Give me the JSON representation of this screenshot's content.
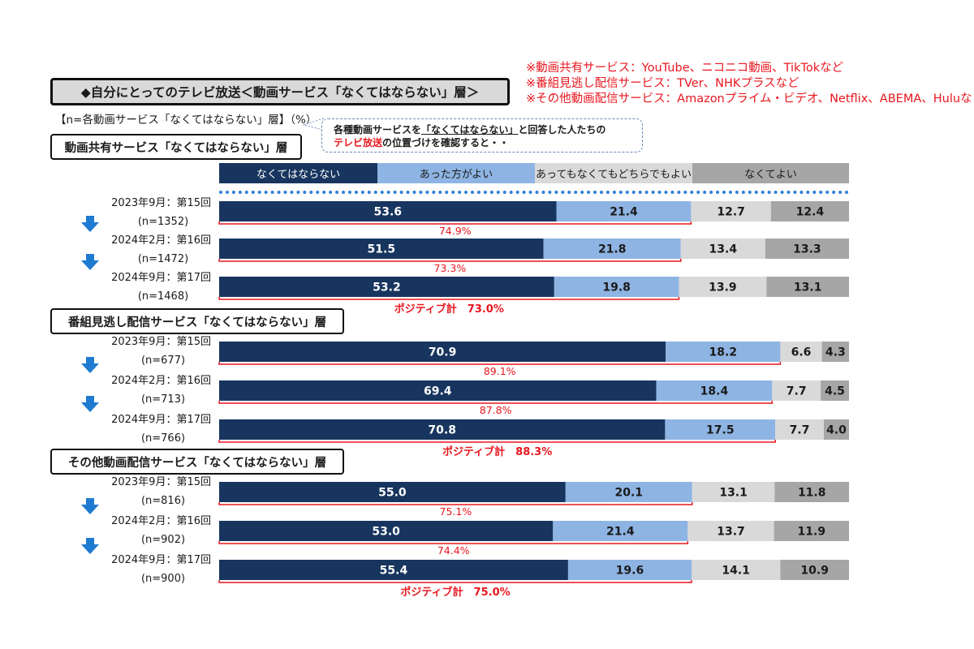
{
  "notes": [
    "※動画共有サービス：YouTube、ニコニコ動画、TikTokなど",
    "※番組見逃し配信サービス：TVer、NHKプラスなど",
    "※その他動画配信サービス：Amazonプライム・ビデオ、Netflix、ABEMA、Huluなど"
  ],
  "main_title": "◆自分にとってのテレビ放送＜動画サービス「なくてはならない」層＞",
  "base_note": "【n=各動画サービス「なくてはならない」層】（%）",
  "callout": {
    "line1_pre": "各種動画サービスを",
    "line1_ul": "「なくてはならない」",
    "line1_post": "と回答した人たちの",
    "line2_red": "テレビ放送",
    "line2_post": "の位置づけを確認すると・・"
  },
  "colors": {
    "navy": "#17355e",
    "light_blue": "#8eb4e3",
    "light_gray": "#d9d9d9",
    "mid_gray": "#a6a6a6",
    "red": "#e8161e",
    "arrow_blue": "#1f7bd1",
    "dotted_line": "#2f7fd3"
  },
  "chart_data": {
    "type": "bar",
    "stacked": true,
    "orientation": "horizontal",
    "unit": "%",
    "legend": [
      "なくてはならない",
      "あった方がよい",
      "あってもなくてもどちらでもよい",
      "なくてよい"
    ],
    "groups": [
      {
        "title": "動画共有サービス「なくてはならない」層",
        "rows": [
          {
            "period": "2023年9月：第15回",
            "n": "(n=1352)",
            "values": [
              53.6,
              21.4,
              12.7,
              12.4
            ]
          },
          {
            "period": "2024年2月：第16回",
            "n": "(n=1472)",
            "values": [
              51.5,
              21.8,
              13.4,
              13.3
            ]
          },
          {
            "period": "2024年9月：第17回",
            "n": "(n=1468)",
            "values": [
              53.2,
              19.8,
              13.9,
              13.1
            ]
          }
        ],
        "positive_labels": [
          "74.9%",
          "73.3%"
        ],
        "positive_total": "ポジティブ計　73.0%"
      },
      {
        "title": "番組見逃し配信サービス「なくてはならない」層",
        "rows": [
          {
            "period": "2023年9月：第15回",
            "n": "(n=677)",
            "values": [
              70.9,
              18.2,
              6.6,
              4.3
            ]
          },
          {
            "period": "2024年2月：第16回",
            "n": "(n=713)",
            "values": [
              69.4,
              18.4,
              7.7,
              4.5
            ]
          },
          {
            "period": "2024年9月：第17回",
            "n": "(n=766)",
            "values": [
              70.8,
              17.5,
              7.7,
              4.0
            ]
          }
        ],
        "positive_labels": [
          "89.1%",
          "87.8%"
        ],
        "positive_total": "ポジティブ計　88.3%"
      },
      {
        "title": "その他動画配信サービス「なくてはならない」層",
        "rows": [
          {
            "period": "2023年9月：第15回",
            "n": "(n=816)",
            "values": [
              55.0,
              20.1,
              13.1,
              11.8
            ]
          },
          {
            "period": "2024年2月：第16回",
            "n": "(n=902)",
            "values": [
              53.0,
              21.4,
              13.7,
              11.9
            ]
          },
          {
            "period": "2024年9月：第17回",
            "n": "(n=900)",
            "values": [
              55.4,
              19.6,
              14.1,
              10.9
            ]
          }
        ],
        "positive_labels": [
          "75.1%",
          "74.4%"
        ],
        "positive_total": "ポジティブ計　75.0%"
      }
    ]
  }
}
